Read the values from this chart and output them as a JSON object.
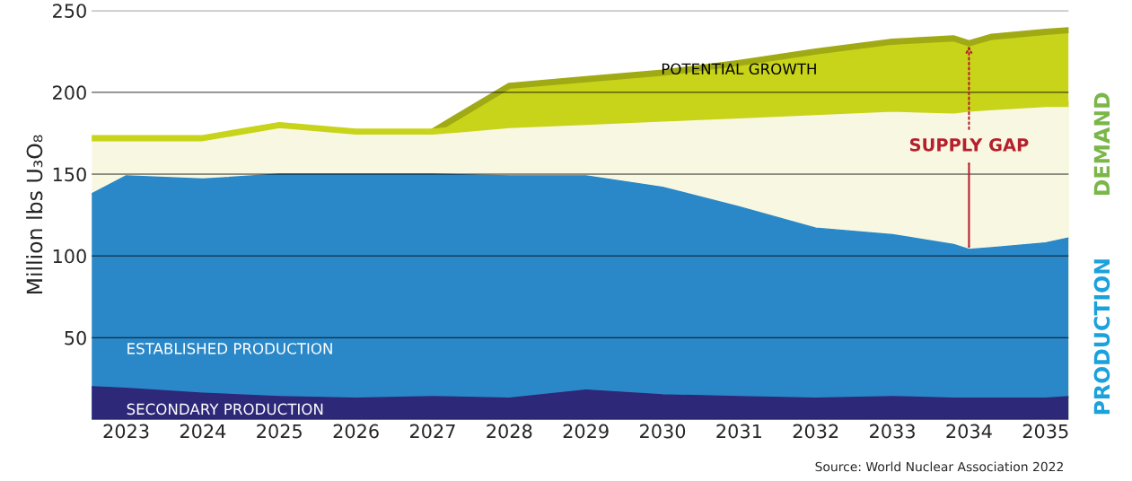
{
  "chart_data": {
    "type": "area",
    "ylabel": "Million lbs U₃O₈",
    "x": [
      2022.55,
      2023,
      2024,
      2025,
      2026,
      2027,
      2028,
      2029,
      2030,
      2031,
      2032,
      2033,
      2033.8,
      2034,
      2034.3,
      2035,
      2035.3
    ],
    "series": [
      {
        "name": "POTENTIAL GROWTH",
        "color": "#c8d419",
        "values": [
          null,
          null,
          null,
          null,
          null,
          176,
          204,
          208,
          212,
          218,
          225,
          231,
          233,
          230,
          234,
          237,
          238
        ]
      },
      {
        "color": "#f8f8e2",
        "values": [
          172,
          172,
          172,
          180,
          176,
          176,
          180,
          182,
          184,
          186,
          188,
          190,
          189,
          190,
          191,
          193,
          193
        ]
      },
      {
        "name": "ESTABLISHED PRODUCTION",
        "color": "#2a88c8",
        "values": [
          138,
          149,
          147,
          150,
          150,
          150,
          149,
          149,
          142,
          130,
          117,
          113,
          107,
          104,
          105,
          108,
          111
        ]
      },
      {
        "name": "SECONDARY PRODUCTION",
        "color": "#2e2878",
        "values": [
          20,
          19,
          16,
          14,
          13,
          14,
          13,
          18,
          15,
          14,
          13,
          14,
          13,
          13,
          13,
          13,
          14
        ]
      }
    ],
    "xlim": [
      2022.55,
      2035.3
    ],
    "xticks": [
      2023,
      2024,
      2025,
      2026,
      2027,
      2028,
      2029,
      2030,
      2031,
      2032,
      2033,
      2034,
      2035
    ],
    "ylim": [
      0,
      250
    ],
    "yticks": [
      {
        "value": 0,
        "label": null
      },
      50,
      100,
      150,
      200,
      250
    ],
    "grid": "y",
    "legend": false,
    "annotations": [
      {
        "text": "SUPPLY GAP",
        "x": 2034,
        "y": 104
      },
      "DEMAND",
      "PRODUCTION",
      "Source: World Nuclear Association 2022"
    ]
  }
}
